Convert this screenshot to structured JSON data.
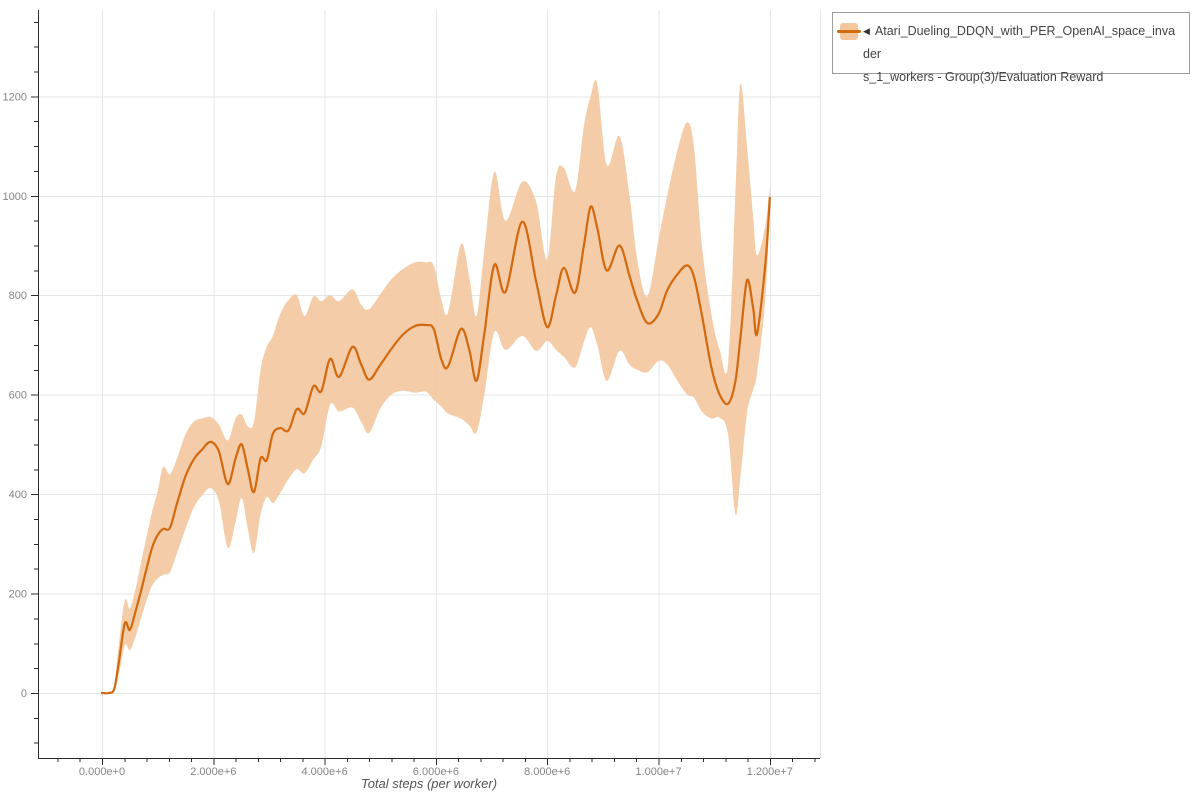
{
  "chart_data": {
    "type": "line",
    "title": "",
    "xlabel": "Total steps (per worker)",
    "ylabel": "",
    "grid": true,
    "legend_position": "top-right",
    "x_ticks": [
      {
        "v": 0,
        "label": "0.000e+0"
      },
      {
        "v": 2,
        "label": "2.000e+6"
      },
      {
        "v": 4,
        "label": "4.000e+6"
      },
      {
        "v": 6,
        "label": "6.000e+6"
      },
      {
        "v": 8,
        "label": "8.000e+6"
      },
      {
        "v": 10,
        "label": "1.000e+7"
      },
      {
        "v": 12,
        "label": "1.200e+7"
      }
    ],
    "y_ticks": [
      0,
      200,
      400,
      600,
      800,
      1000,
      1200
    ],
    "xlim_millions": [
      -1.15,
      12.9
    ],
    "ylim": [
      -131,
      1375
    ],
    "series": [
      {
        "name": "Atari_Dueling_DDQN_with_PER_OpenAI_space_invaders_1_workers - Group(3)/Evaluation Reward",
        "x_unit": "million steps",
        "line_color": "#d2690e",
        "band_color": "#f3c69e",
        "points_format": [
          "x_millions",
          "mean",
          "band_lower",
          "band_upper"
        ],
        "points": [
          [
            0.0,
            0,
            0,
            0
          ],
          [
            0.12,
            0,
            0,
            0
          ],
          [
            0.22,
            8,
            4,
            14
          ],
          [
            0.3,
            60,
            36,
            95
          ],
          [
            0.41,
            140,
            96,
            186
          ],
          [
            0.5,
            127,
            86,
            170
          ],
          [
            0.6,
            163,
            112,
            208
          ],
          [
            0.7,
            205,
            150,
            262
          ],
          [
            0.8,
            250,
            186,
            314
          ],
          [
            0.9,
            292,
            216,
            364
          ],
          [
            1.0,
            318,
            230,
            406
          ],
          [
            1.1,
            330,
            238,
            455
          ],
          [
            1.22,
            332,
            243,
            440
          ],
          [
            1.35,
            382,
            282,
            472
          ],
          [
            1.5,
            436,
            330,
            520
          ],
          [
            1.65,
            470,
            373,
            546
          ],
          [
            1.8,
            490,
            398,
            552
          ],
          [
            1.95,
            505,
            412,
            555
          ],
          [
            2.1,
            486,
            386,
            540
          ],
          [
            2.26,
            420,
            292,
            508
          ],
          [
            2.4,
            472,
            345,
            552
          ],
          [
            2.51,
            500,
            392,
            560
          ],
          [
            2.62,
            450,
            330,
            536
          ],
          [
            2.73,
            404,
            282,
            545
          ],
          [
            2.85,
            472,
            360,
            650
          ],
          [
            2.96,
            468,
            394,
            696
          ],
          [
            3.07,
            521,
            382,
            718
          ],
          [
            3.2,
            533,
            402,
            762
          ],
          [
            3.35,
            528,
            430,
            790
          ],
          [
            3.5,
            571,
            450,
            800
          ],
          [
            3.64,
            563,
            442,
            758
          ],
          [
            3.8,
            617,
            470,
            798
          ],
          [
            3.94,
            607,
            496,
            788
          ],
          [
            4.1,
            672,
            580,
            800
          ],
          [
            4.26,
            636,
            566,
            788
          ],
          [
            4.5,
            696,
            574,
            812
          ],
          [
            4.66,
            660,
            545,
            780
          ],
          [
            4.8,
            630,
            523,
            772
          ],
          [
            5.0,
            660,
            572,
            802
          ],
          [
            5.2,
            692,
            600,
            832
          ],
          [
            5.4,
            720,
            608,
            852
          ],
          [
            5.62,
            738,
            604,
            866
          ],
          [
            5.82,
            740,
            606,
            866
          ],
          [
            5.96,
            732,
            590,
            860
          ],
          [
            6.1,
            670,
            576,
            790
          ],
          [
            6.22,
            657,
            562,
            766
          ],
          [
            6.45,
            732,
            552,
            902
          ],
          [
            6.6,
            690,
            538,
            836
          ],
          [
            6.73,
            628,
            524,
            758
          ],
          [
            6.87,
            722,
            600,
            890
          ],
          [
            7.05,
            861,
            726,
            1048
          ],
          [
            7.25,
            807,
            690,
            950
          ],
          [
            7.55,
            948,
            718,
            1028
          ],
          [
            7.8,
            828,
            688,
            988
          ],
          [
            8.0,
            736,
            708,
            872
          ],
          [
            8.16,
            800,
            690,
            1040
          ],
          [
            8.3,
            855,
            676,
            1056
          ],
          [
            8.5,
            805,
            655,
            1010
          ],
          [
            8.66,
            900,
            706,
            1140
          ],
          [
            8.78,
            978,
            736,
            1200
          ],
          [
            8.9,
            935,
            700,
            1225
          ],
          [
            9.07,
            850,
            628,
            1062
          ],
          [
            9.3,
            900,
            688,
            1120
          ],
          [
            9.48,
            838,
            660,
            1000
          ],
          [
            9.62,
            788,
            650,
            870
          ],
          [
            9.8,
            744,
            645,
            798
          ],
          [
            10.0,
            762,
            668,
            912
          ],
          [
            10.16,
            811,
            660,
            1002
          ],
          [
            10.36,
            845,
            624,
            1100
          ],
          [
            10.52,
            860,
            600,
            1148
          ],
          [
            10.64,
            836,
            594,
            1096
          ],
          [
            10.78,
            760,
            566,
            900
          ],
          [
            10.95,
            655,
            552,
            762
          ],
          [
            11.1,
            600,
            554,
            690
          ],
          [
            11.25,
            582,
            520,
            662
          ],
          [
            11.38,
            626,
            360,
            1000
          ],
          [
            11.47,
            712,
            432,
            1224
          ],
          [
            11.59,
            830,
            562,
            1100
          ],
          [
            11.7,
            775,
            610,
            960
          ],
          [
            11.77,
            722,
            642,
            880
          ],
          [
            11.92,
            862,
            790,
            940
          ],
          [
            12.0,
            996,
            970,
            1018
          ]
        ]
      }
    ]
  },
  "legend": {
    "collapse_icon": "◀",
    "line1": "Atari_Dueling_DDQN_with_PER_OpenAI_space_invader",
    "line2": "s_1_workers - Group(3)/Evaluation Reward"
  },
  "colors": {
    "line": "#d2690e",
    "band_fill": "#f3c69e",
    "grid": "#e5e5e5",
    "spine": "#2b2b2b",
    "tick_label": "#858585",
    "axis_title": "#555555",
    "legend_text": "#444444",
    "legend_border": "#9c9c9c",
    "background": "#ffffff"
  }
}
